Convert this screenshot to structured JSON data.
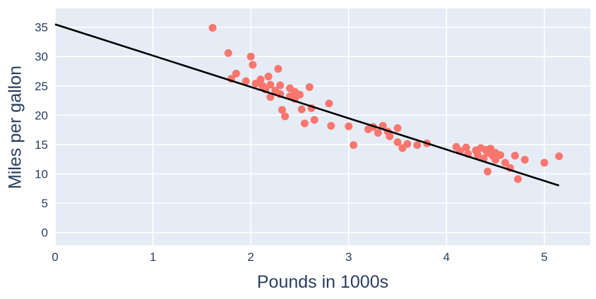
{
  "chart_data": {
    "type": "scatter",
    "title": "",
    "xlabel": "Pounds in 1000s",
    "ylabel": "Miles per gallon",
    "xlim": [
      0,
      5.47
    ],
    "ylim": [
      -2.2,
      38.2
    ],
    "x_ticks": [
      0,
      1,
      2,
      3,
      4,
      5
    ],
    "y_ticks": [
      0,
      5,
      10,
      15,
      20,
      25,
      30,
      35
    ],
    "grid": true,
    "legend": "none",
    "colors": {
      "plot_background": "#e5ecf6",
      "grid": "#ffffff",
      "point": "#f8766d",
      "line": "#000000",
      "text": "#2a3f5f"
    },
    "points": [
      [
        1.61,
        34.9
      ],
      [
        1.77,
        30.6
      ],
      [
        1.8,
        26.2
      ],
      [
        1.85,
        27.1
      ],
      [
        1.95,
        25.8
      ],
      [
        2.0,
        30.0
      ],
      [
        2.02,
        28.6
      ],
      [
        2.05,
        25.4
      ],
      [
        2.1,
        26.1
      ],
      [
        2.12,
        25.0
      ],
      [
        2.15,
        24.4
      ],
      [
        2.18,
        26.6
      ],
      [
        2.2,
        25.2
      ],
      [
        2.2,
        23.1
      ],
      [
        2.25,
        24.2
      ],
      [
        2.28,
        27.9
      ],
      [
        2.3,
        25.1
      ],
      [
        2.3,
        23.6
      ],
      [
        2.32,
        20.9
      ],
      [
        2.35,
        19.8
      ],
      [
        2.4,
        24.6
      ],
      [
        2.4,
        23.2
      ],
      [
        2.45,
        24.0
      ],
      [
        2.45,
        22.8
      ],
      [
        2.5,
        23.5
      ],
      [
        2.52,
        21.0
      ],
      [
        2.55,
        18.6
      ],
      [
        2.6,
        24.8
      ],
      [
        2.62,
        21.2
      ],
      [
        2.65,
        19.2
      ],
      [
        2.8,
        22.0
      ],
      [
        2.82,
        18.2
      ],
      [
        3.0,
        18.1
      ],
      [
        3.05,
        14.9
      ],
      [
        3.2,
        17.6
      ],
      [
        3.25,
        18.0
      ],
      [
        3.3,
        17.0
      ],
      [
        3.35,
        18.2
      ],
      [
        3.4,
        17.2
      ],
      [
        3.42,
        16.4
      ],
      [
        3.5,
        17.8
      ],
      [
        3.5,
        15.4
      ],
      [
        3.55,
        14.4
      ],
      [
        3.6,
        15.1
      ],
      [
        3.7,
        14.9
      ],
      [
        3.8,
        15.2
      ],
      [
        4.1,
        14.6
      ],
      [
        4.14,
        13.9
      ],
      [
        4.2,
        14.5
      ],
      [
        4.22,
        13.4
      ],
      [
        4.3,
        14.0
      ],
      [
        4.32,
        13.2
      ],
      [
        4.35,
        14.4
      ],
      [
        4.38,
        12.6
      ],
      [
        4.4,
        14.1
      ],
      [
        4.42,
        13.6
      ],
      [
        4.42,
        10.4
      ],
      [
        4.45,
        14.3
      ],
      [
        4.47,
        13.1
      ],
      [
        4.5,
        13.6
      ],
      [
        4.5,
        12.4
      ],
      [
        4.55,
        13.2
      ],
      [
        4.6,
        11.9
      ],
      [
        4.65,
        11.0
      ],
      [
        4.7,
        13.1
      ],
      [
        4.73,
        9.1
      ],
      [
        4.8,
        12.4
      ],
      [
        5.0,
        11.9
      ],
      [
        5.15,
        13.0
      ]
    ],
    "regression_line": {
      "x": [
        0,
        5.15
      ],
      "y": [
        35.5,
        8.0
      ]
    }
  }
}
